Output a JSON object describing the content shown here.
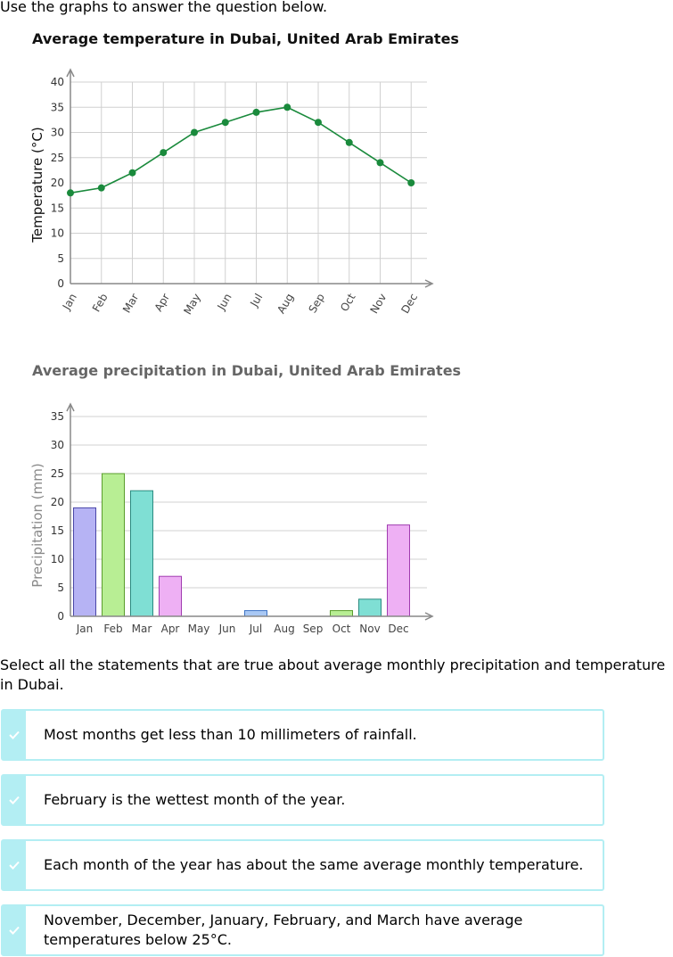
{
  "intro": "Use the graphs to answer the question below.",
  "question": "Select all the statements that are true about average monthly precipitation and temperature in Dubai.",
  "options": [
    {
      "text": "Most months get less than 10 millimeters of rainfall.",
      "icon": "check-icon"
    },
    {
      "text": "February is the wettest month of the year.",
      "icon": "check-icon"
    },
    {
      "text": "Each month of the year has about the same average monthly temperature.",
      "icon": "check-icon"
    },
    {
      "text": "November, December, January, February, and March have average temperatures below 25°C.",
      "icon": "check-icon"
    }
  ],
  "colors": {
    "line": "#1a8a3c",
    "grid": "#d0d0d0",
    "axis": "#888888",
    "option_border": "#b3eef3"
  },
  "chart_data": [
    {
      "type": "line",
      "title": "Average temperature in Dubai, United Arab Emirates",
      "xlabel": "",
      "ylabel": "Temperature (°C)",
      "categories": [
        "Jan",
        "Feb",
        "Mar",
        "Apr",
        "May",
        "Jun",
        "Jul",
        "Aug",
        "Sep",
        "Oct",
        "Nov",
        "Dec"
      ],
      "values": [
        18,
        19,
        22,
        26,
        30,
        32,
        34,
        35,
        32,
        28,
        24,
        20
      ],
      "ylim": [
        0,
        40
      ],
      "yticks": [
        0,
        5,
        10,
        15,
        20,
        25,
        30,
        35,
        40
      ],
      "grid": true,
      "tick_label_rotation": "rotated"
    },
    {
      "type": "bar",
      "title": "Average precipitation in Dubai, United Arab Emirates",
      "xlabel": "",
      "ylabel": "Precipitation (mm)",
      "categories": [
        "Jan",
        "Feb",
        "Mar",
        "Apr",
        "May",
        "Jun",
        "Jul",
        "Aug",
        "Sep",
        "Oct",
        "Nov",
        "Dec"
      ],
      "values": [
        19,
        25,
        22,
        7,
        0,
        0,
        1,
        0,
        0,
        1,
        3,
        16
      ],
      "bar_colors": [
        "#b6b3f4",
        "#b8ee94",
        "#7fdfd4",
        "#eeb0f4",
        "#b6b3f4",
        "#b8ee94",
        "#a9c8f4",
        "#eeb0f4",
        "#b6b3f4",
        "#b8ee94",
        "#7fdfd4",
        "#eeb0f4"
      ],
      "bar_borders": [
        "#4a46a8",
        "#5a9d2c",
        "#2b8b80",
        "#a03cb0",
        "#4a46a8",
        "#5a9d2c",
        "#3d73c4",
        "#a03cb0",
        "#4a46a8",
        "#5a9d2c",
        "#2b8b80",
        "#a03cb0"
      ],
      "ylim": [
        0,
        35
      ],
      "yticks": [
        0,
        5,
        10,
        15,
        20,
        25,
        30,
        35
      ],
      "grid": true
    }
  ]
}
